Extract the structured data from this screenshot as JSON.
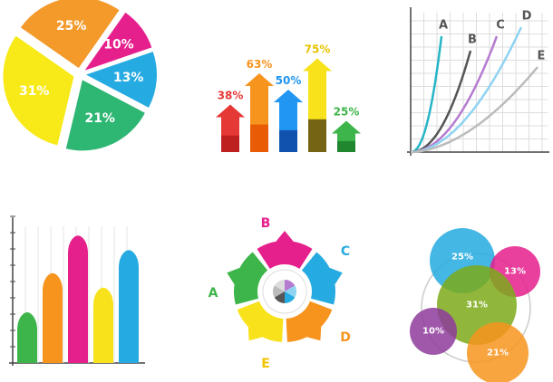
{
  "chart_data": [
    {
      "type": "pie",
      "slices": [
        {
          "label": "25%",
          "value": 25,
          "color": "#F39A2B"
        },
        {
          "label": "10%",
          "value": 10,
          "color": "#E51F8C"
        },
        {
          "label": "13%",
          "value": 13,
          "color": "#25AAE1"
        },
        {
          "label": "21%",
          "value": 21,
          "color": "#2EB673"
        },
        {
          "label": "31%",
          "value": 31,
          "color": "#F7EA18"
        }
      ]
    },
    {
      "type": "bar",
      "style": "arrows",
      "ylim": [
        0,
        100
      ],
      "bars": [
        {
          "label": "38%",
          "value": 38,
          "color": "#E53935",
          "dark": "#B71C1C"
        },
        {
          "label": "63%",
          "value": 63,
          "color": "#F7941D",
          "dark": "#E65100"
        },
        {
          "label": "50%",
          "value": 50,
          "color": "#2196F3",
          "dark": "#0D47A1"
        },
        {
          "label": "75%",
          "value": 75,
          "color": "#F7E21B",
          "dark": "#5D4E12"
        },
        {
          "label": "25%",
          "value": 25,
          "color": "#3DB54A",
          "dark": "#1B7F2A"
        }
      ]
    },
    {
      "type": "line",
      "grid": true,
      "series": [
        {
          "name": "A",
          "k": 3.5,
          "color": "#26B5C6"
        },
        {
          "name": "B",
          "k": 2.2,
          "color": "#555555"
        },
        {
          "name": "C",
          "k": 1.5,
          "color": "#B57BD0"
        },
        {
          "name": "D",
          "k": 1.1,
          "color": "#8FD3F2"
        },
        {
          "name": "E",
          "k": 0.55,
          "color": "#BBBBBB"
        }
      ]
    },
    {
      "type": "area",
      "style": "peaks",
      "ylim": [
        0,
        100
      ],
      "peaks": [
        {
          "value": 35,
          "color": "#3DB54A"
        },
        {
          "value": 62,
          "color": "#F7941D"
        },
        {
          "value": 88,
          "color": "#E51F8C"
        },
        {
          "value": 52,
          "color": "#F7E21B"
        },
        {
          "value": 78,
          "color": "#25AAE1"
        }
      ]
    },
    {
      "type": "pie",
      "style": "segmented-ring",
      "segments": [
        {
          "label": "B",
          "color": "#E51F8C"
        },
        {
          "label": "C",
          "color": "#25AAE1"
        },
        {
          "label": "D",
          "color": "#F7941D"
        },
        {
          "label": "E",
          "color": "#F7E21B"
        },
        {
          "label": "A",
          "color": "#3DB54A"
        }
      ],
      "center_colors": [
        "#B57BD0",
        "#8FD3F2",
        "#25AAE1",
        "#555555",
        "#BBBBBB",
        "#DDDDDD"
      ]
    },
    {
      "type": "scatter",
      "style": "bubbles",
      "bubbles": [
        {
          "label": "25%",
          "value": 25,
          "color": "#25AAE1"
        },
        {
          "label": "13%",
          "value": 13,
          "color": "#E51F8C"
        },
        {
          "label": "31%",
          "value": 31,
          "color": "#7DAA1A"
        },
        {
          "label": "10%",
          "value": 10,
          "color": "#8E3B9B"
        },
        {
          "label": "21%",
          "value": 21,
          "color": "#F7941D"
        }
      ]
    }
  ]
}
